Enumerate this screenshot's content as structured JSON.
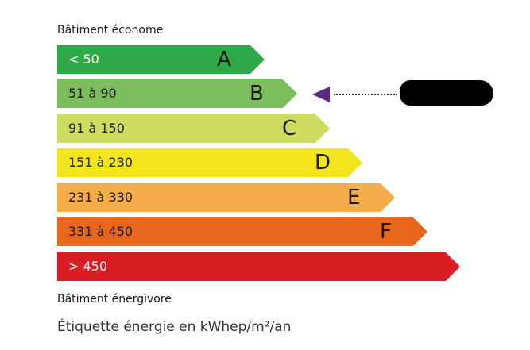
{
  "top_label": "Bâtiment économe",
  "bottom_label": "Bâtiment énergivore",
  "footer": "Étiquette énergie en kWhep/m²/an",
  "classes": [
    {
      "letter": "A",
      "range": "< 50",
      "color": "#2fa84a",
      "text_color": "#ffffff"
    },
    {
      "letter": "B",
      "range": "51 à 90",
      "color": "#7cbd5e",
      "text_color": "#1a1a1a"
    },
    {
      "letter": "C",
      "range": "91 à 150",
      "color": "#cddb5f",
      "text_color": "#1a1a1a"
    },
    {
      "letter": "D",
      "range": "151 à 230",
      "color": "#f2e51e",
      "text_color": "#1a1a1a"
    },
    {
      "letter": "E",
      "range": "231 à 330",
      "color": "#f5ac4a",
      "text_color": "#1a1a1a"
    },
    {
      "letter": "F",
      "range": "331 à 450",
      "color": "#e8651c",
      "text_color": "#1a1a1a"
    },
    {
      "letter": "",
      "range": "> 450",
      "color": "#d91e23",
      "text_color": "#ffffff"
    }
  ],
  "indicator": {
    "class": "B",
    "color": "#5e2a84"
  }
}
